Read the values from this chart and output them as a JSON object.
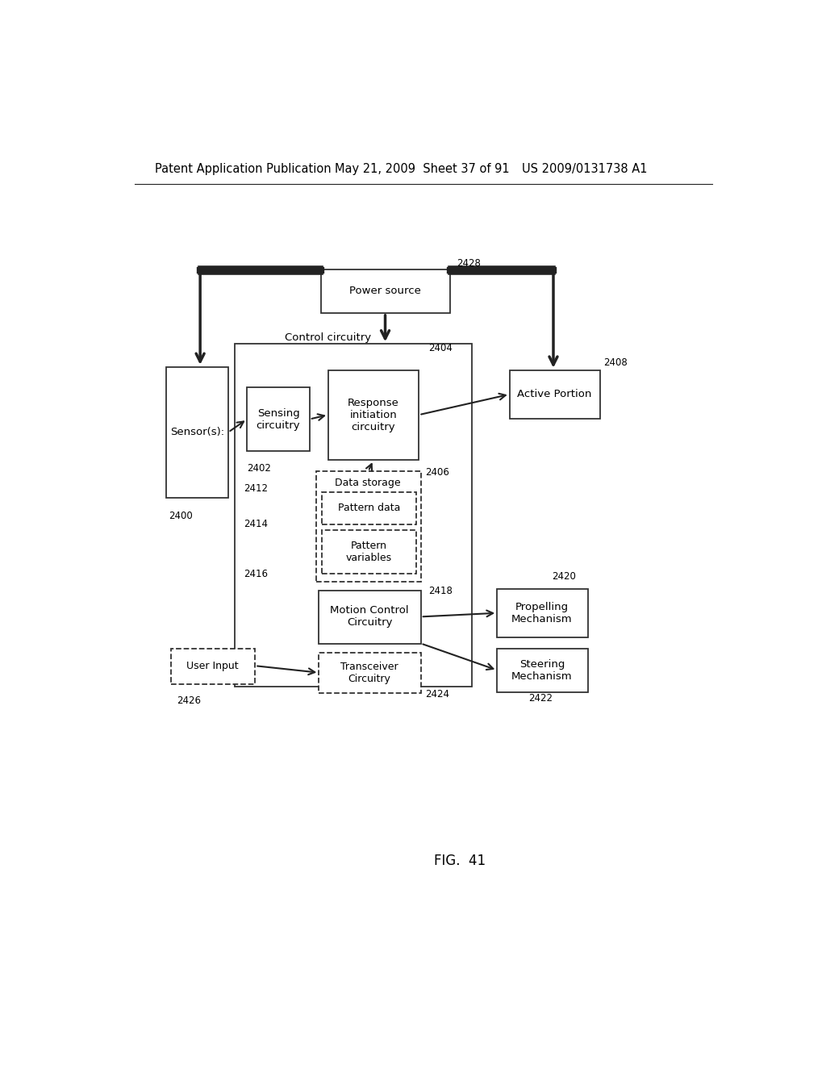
{
  "bg_color": "#ffffff",
  "header_left": "Patent Application Publication",
  "header_mid": "May 21, 2009  Sheet 37 of 91",
  "header_right": "US 2009/0131738 A1",
  "fig_label": "FIG.  41",
  "font_size_header": 10.5,
  "font_size_label": 9.5,
  "font_size_ref": 8.5,
  "font_size_fig": 12
}
